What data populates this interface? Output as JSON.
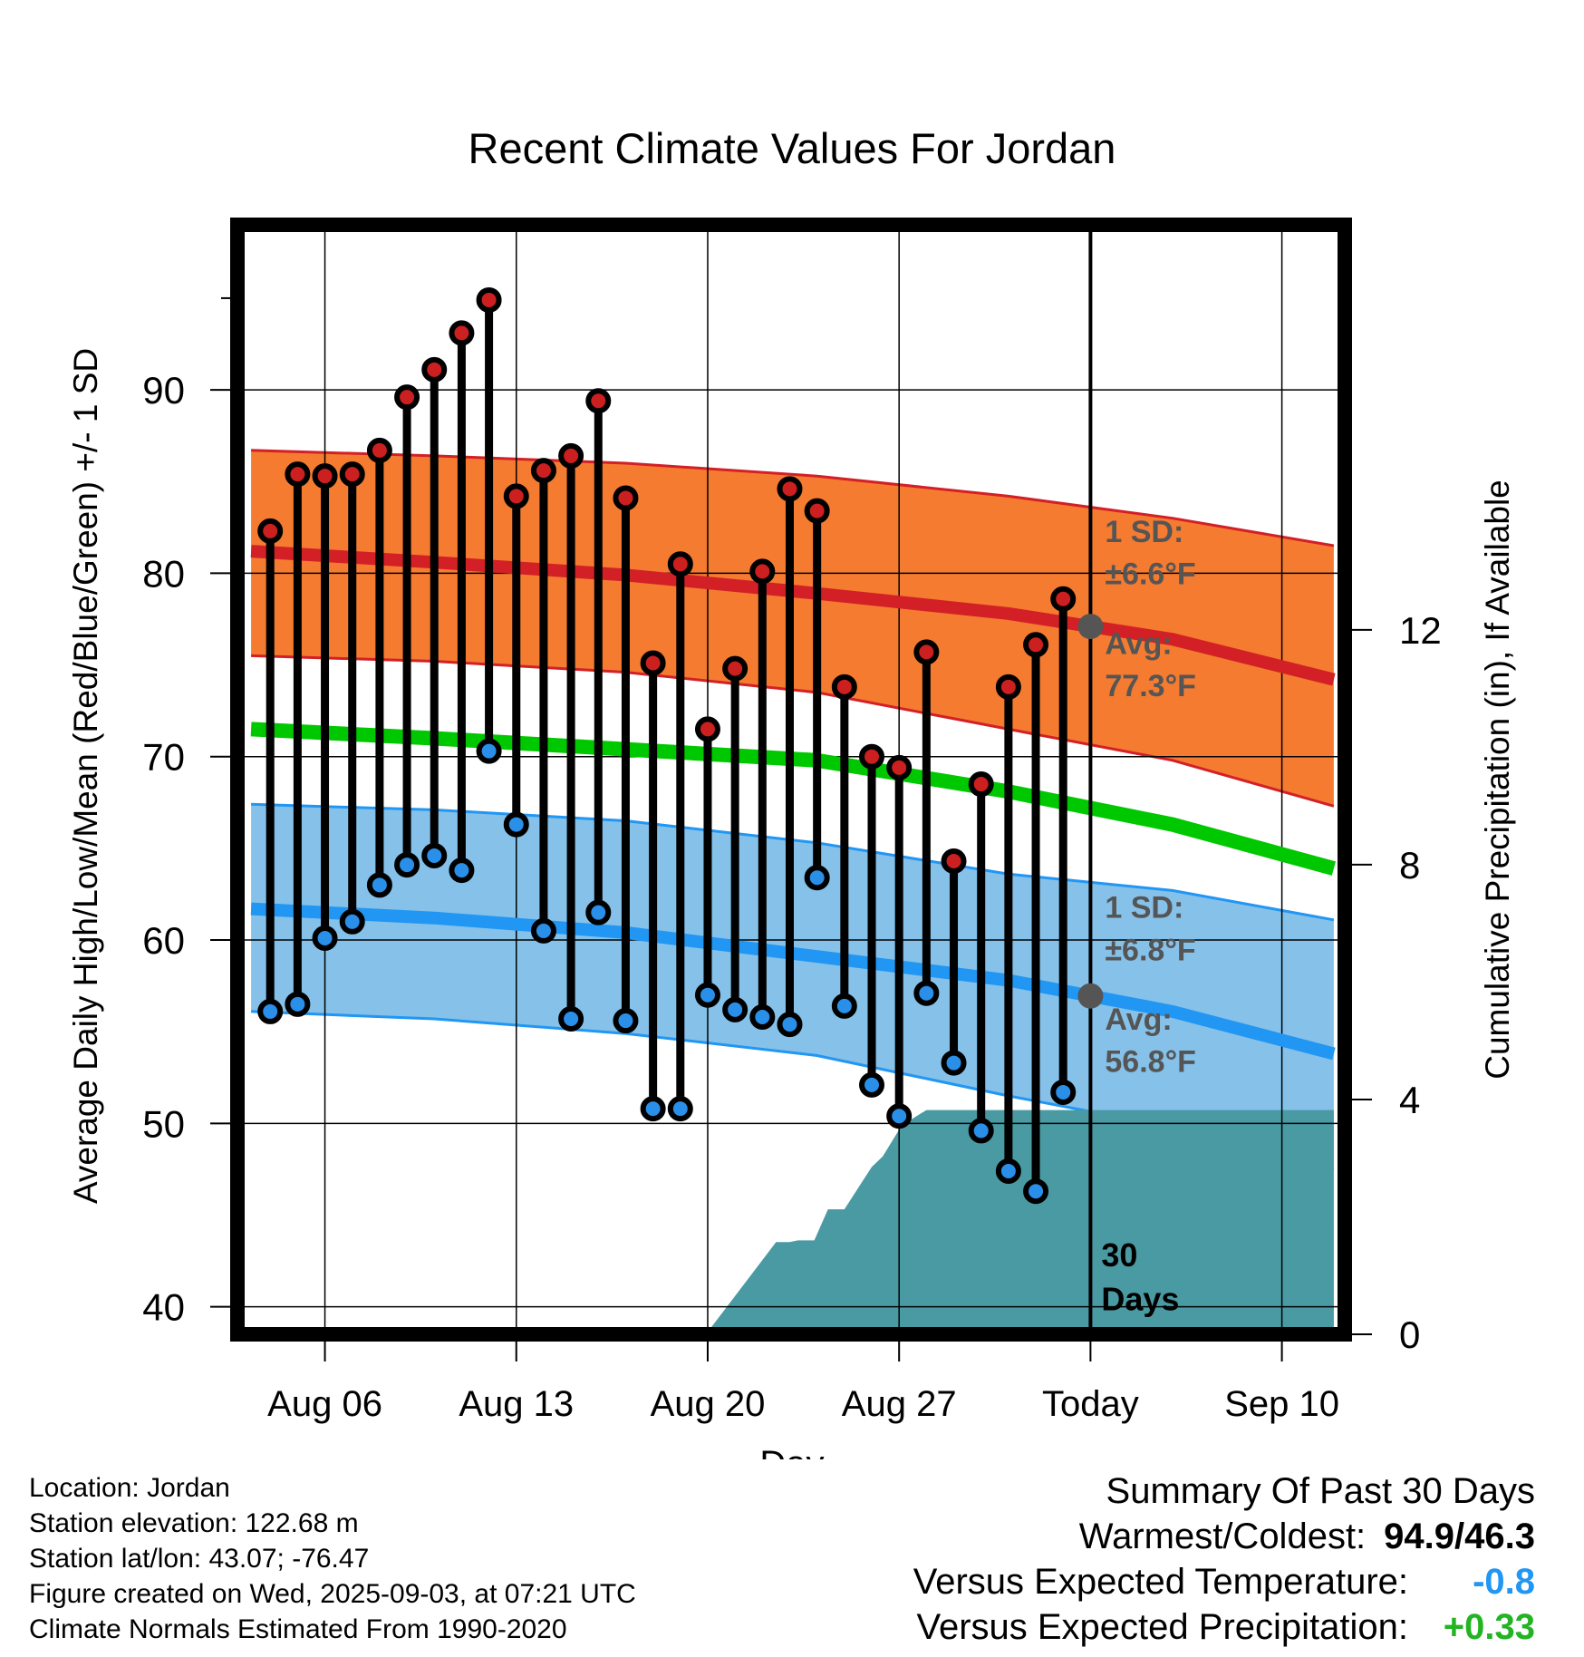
{
  "chart_data": {
    "type": "line",
    "title": "Recent Climate Values For Jordan",
    "xlabel": "Day",
    "ylabel_left": "Average Daily High/Low/Mean (Red/Blue/Green) +/- 1 SD",
    "ylabel_right": "Cumulative Precipitation (in), If Available",
    "ylim": [
      38.5,
      99
    ],
    "y2lim": [
      0,
      18.9
    ],
    "xlim": [
      1.8,
      42.3
    ],
    "x_ticks": [
      {
        "x": 5,
        "label": "Aug 06"
      },
      {
        "x": 12,
        "label": "Aug 13"
      },
      {
        "x": 19,
        "label": "Aug 20"
      },
      {
        "x": 26,
        "label": "Aug 27"
      },
      {
        "x": 33,
        "label": "Today"
      },
      {
        "x": 40,
        "label": "Sep 10"
      }
    ],
    "y_ticks": [
      40,
      50,
      60,
      70,
      80,
      90
    ],
    "y2_ticks": [
      0,
      4,
      8,
      12
    ],
    "today_x": 33,
    "period_label": "30",
    "period_label2": "Days",
    "daily": {
      "x": [
        3,
        4,
        5,
        6,
        7,
        8,
        9,
        10,
        11,
        12,
        13,
        14,
        15,
        16,
        17,
        18,
        19,
        20,
        21,
        22,
        23,
        24,
        25,
        26,
        27,
        28,
        29,
        30,
        31,
        32
      ],
      "high": [
        82.3,
        85.4,
        85.3,
        85.4,
        86.7,
        89.6,
        91.1,
        93.1,
        94.9,
        84.2,
        85.6,
        86.4,
        89.4,
        84.1,
        75.1,
        80.5,
        71.5,
        74.8,
        80.1,
        84.6,
        83.4,
        73.8,
        70.0,
        69.4,
        75.7,
        64.3,
        68.5,
        73.8,
        76.1,
        78.6
      ],
      "low": [
        56.1,
        56.5,
        60.1,
        61.0,
        63.0,
        64.1,
        64.6,
        63.8,
        70.3,
        66.3,
        60.5,
        55.7,
        61.5,
        55.6,
        50.8,
        50.8,
        57.0,
        56.2,
        55.8,
        55.4,
        63.4,
        56.4,
        52.1,
        50.4,
        57.1,
        53.3,
        49.6,
        47.4,
        46.3,
        51.7
      ]
    },
    "normals": {
      "x": [
        2.3,
        9,
        16,
        23,
        30,
        36,
        41.9
      ],
      "high_avg": [
        81.2,
        80.6,
        79.9,
        78.9,
        77.8,
        76.4,
        74.2
      ],
      "high_sd_upper": [
        86.7,
        86.4,
        86.0,
        85.3,
        84.2,
        83.0,
        81.5
      ],
      "high_sd_lower": [
        75.5,
        75.2,
        74.6,
        73.5,
        71.5,
        69.8,
        67.3
      ],
      "mean_avg": [
        71.5,
        71.0,
        70.4,
        69.8,
        68.1,
        66.3,
        63.9
      ],
      "low_avg": [
        61.7,
        61.2,
        60.4,
        59.1,
        57.8,
        56.1,
        53.8
      ],
      "low_sd_upper": [
        67.4,
        67.1,
        66.5,
        65.3,
        63.6,
        62.7,
        61.1
      ],
      "low_sd_lower": [
        56.1,
        55.7,
        54.9,
        53.7,
        51.5,
        49.8,
        47.5
      ]
    },
    "precip": {
      "x": [
        2.3,
        18.0,
        19.0,
        21.5,
        22.0,
        22.3,
        22.9,
        23.4,
        24.0,
        25.0,
        25.4,
        26.1,
        27.0,
        41.9
      ],
      "y": [
        0,
        0.04,
        0.04,
        1.57,
        1.57,
        1.6,
        1.6,
        2.13,
        2.13,
        2.85,
        3.03,
        3.56,
        3.82,
        3.82
      ]
    },
    "annotations": {
      "high_sd_label": "1 SD:",
      "high_sd_value": "±6.6°F",
      "high_avg_label": "Avg:",
      "high_avg_value": "77.3°F",
      "low_sd_label": "1 SD:",
      "low_sd_value": "±6.8°F",
      "low_avg_label": "Avg:",
      "low_avg_value": "56.8°F"
    },
    "colors": {
      "high_band": "#f47b30",
      "high_line": "#d32027",
      "low_band": "#85c1e9",
      "low_line": "#2196f3",
      "mean_line": "#00c800",
      "precip": "#4a9aa3",
      "high_dot": "#cc1f1f",
      "low_dot": "#2a8fe8",
      "annotation": "#555555"
    }
  },
  "info": {
    "location": "Location: Jordan",
    "elevation": "Station elevation: 122.68 m",
    "latlon": "Station lat/lon: 43.07; -76.47",
    "created": "Figure created on Wed, 2025-09-03, at 07:21 UTC",
    "normals": "Climate Normals Estimated From 1990-2020"
  },
  "summary": {
    "title": "Summary Of Past 30 Days",
    "warm_cold_label": "Warmest/Coldest:",
    "warm_cold_value": "94.9/46.3",
    "temp_label": "Versus Expected Temperature:",
    "temp_value": "-0.8",
    "temp_color": "#2196f3",
    "precip_label": "Versus Expected Precipitation:",
    "precip_value": "+0.33",
    "precip_color": "#22b422"
  }
}
